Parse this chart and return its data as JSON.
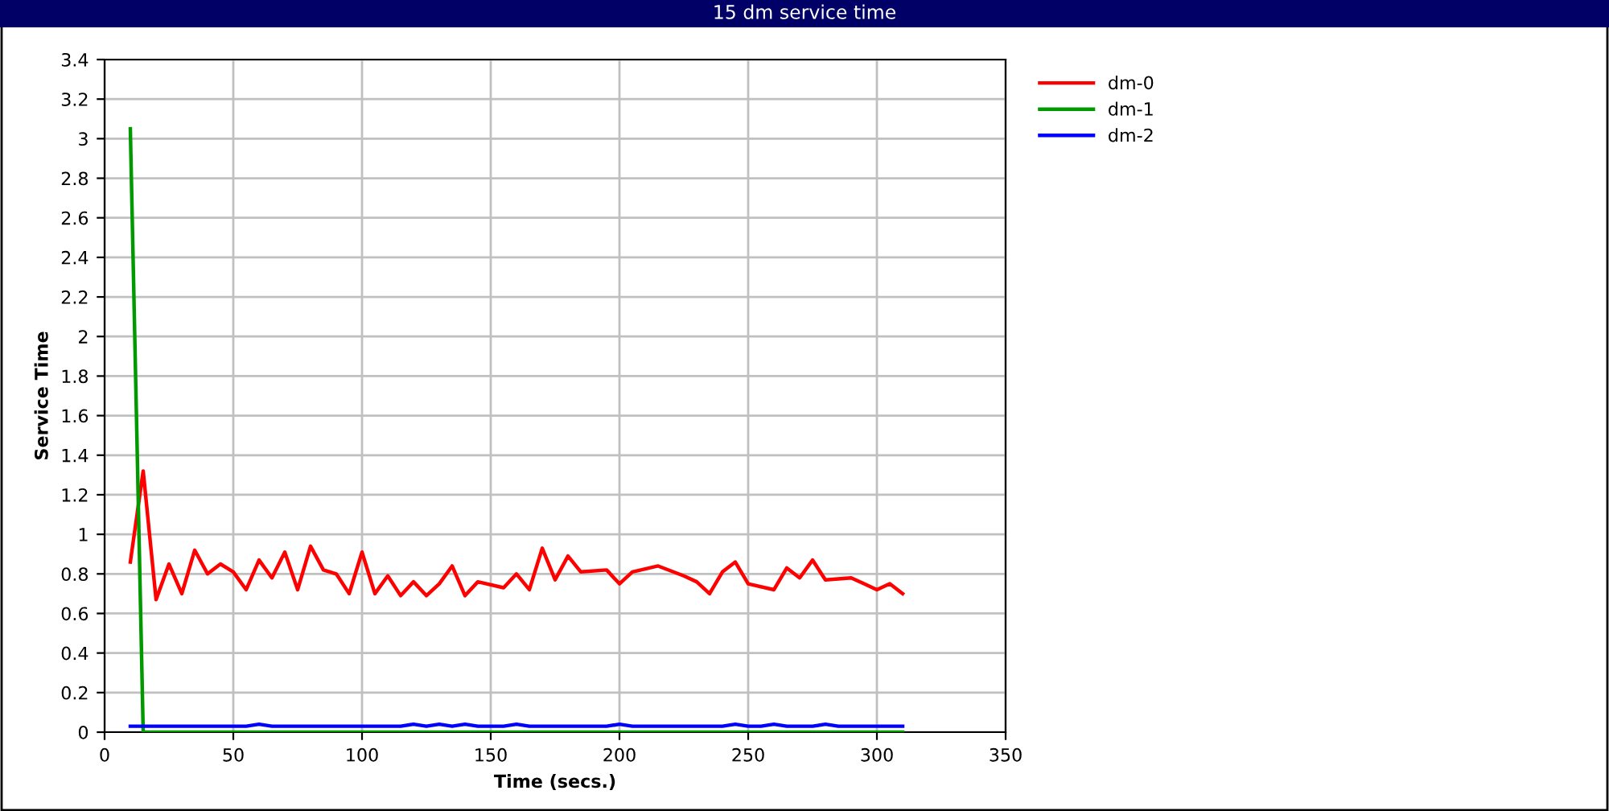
{
  "chart_data": {
    "type": "line",
    "title": "15 dm service time",
    "xlabel": "Time (secs.)",
    "ylabel": "Service Time",
    "xlim": [
      0,
      350
    ],
    "xticks": [
      0,
      50,
      100,
      150,
      200,
      250,
      300,
      350
    ],
    "ylim": [
      0,
      3.4
    ],
    "yticks": [
      0,
      0.2,
      0.4,
      0.6,
      0.8,
      1,
      1.2,
      1.4,
      1.6,
      1.8,
      2,
      2.2,
      2.4,
      2.6,
      2.8,
      3,
      3.2,
      3.4
    ],
    "grid": true,
    "legend": "top right",
    "marker": "none",
    "line_style": "solid",
    "series": [
      {
        "name": "dm-0",
        "color": "#ff0000",
        "x": [
          10,
          15,
          20,
          25,
          30,
          35,
          40,
          45,
          50,
          55,
          60,
          65,
          70,
          75,
          80,
          85,
          90,
          95,
          100,
          105,
          110,
          115,
          120,
          125,
          130,
          135,
          140,
          145,
          155,
          160,
          165,
          170,
          175,
          180,
          185,
          195,
          200,
          205,
          215,
          225,
          230,
          235,
          240,
          245,
          250,
          260,
          265,
          270,
          275,
          280,
          290,
          295,
          300,
          305,
          310
        ],
        "values": [
          0.86,
          1.32,
          0.67,
          0.85,
          0.7,
          0.92,
          0.8,
          0.85,
          0.81,
          0.72,
          0.87,
          0.78,
          0.91,
          0.72,
          0.94,
          0.82,
          0.8,
          0.7,
          0.91,
          0.7,
          0.79,
          0.69,
          0.76,
          0.69,
          0.75,
          0.84,
          0.69,
          0.76,
          0.73,
          0.8,
          0.72,
          0.93,
          0.77,
          0.89,
          0.81,
          0.82,
          0.75,
          0.81,
          0.84,
          0.79,
          0.76,
          0.7,
          0.81,
          0.86,
          0.75,
          0.72,
          0.83,
          0.78,
          0.87,
          0.77,
          0.78,
          0.75,
          0.72,
          0.75,
          0.7
        ]
      },
      {
        "name": "dm-1",
        "color": "#009900",
        "x": [
          10,
          15,
          310
        ],
        "values": [
          3.05,
          0,
          0
        ]
      },
      {
        "name": "dm-2",
        "color": "#0000ff",
        "x": [
          10,
          55,
          60,
          65,
          115,
          120,
          125,
          130,
          135,
          140,
          145,
          155,
          160,
          165,
          195,
          200,
          205,
          240,
          245,
          250,
          255,
          260,
          265,
          275,
          280,
          285,
          310
        ],
        "values": [
          0.03,
          0.03,
          0.04,
          0.03,
          0.03,
          0.04,
          0.03,
          0.04,
          0.03,
          0.04,
          0.03,
          0.03,
          0.04,
          0.03,
          0.03,
          0.04,
          0.03,
          0.03,
          0.04,
          0.03,
          0.03,
          0.04,
          0.03,
          0.03,
          0.04,
          0.03,
          0.03
        ]
      }
    ]
  }
}
